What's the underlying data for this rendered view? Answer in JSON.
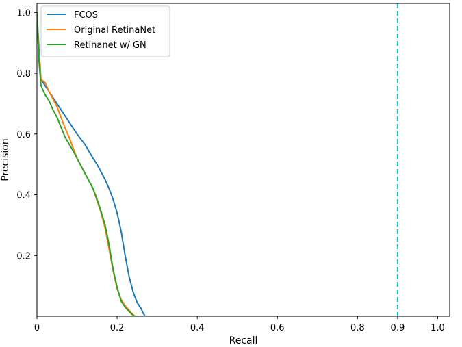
{
  "chart_data": {
    "type": "line",
    "xlabel": "Recall",
    "ylabel": "Precision",
    "xlim": [
      0,
      1.03
    ],
    "ylim": [
      0,
      1.03
    ],
    "x_ticks": [
      {
        "value": 0,
        "label": "0"
      },
      {
        "value": 0.2,
        "label": "0.2"
      },
      {
        "value": 0.4,
        "label": "0.4"
      },
      {
        "value": 0.6,
        "label": "0.6"
      },
      {
        "value": 0.8,
        "label": "0.8"
      },
      {
        "value": 0.9,
        "label": "0.9"
      },
      {
        "value": 1.0,
        "label": "1.0"
      }
    ],
    "y_ticks": [
      {
        "value": 0.2,
        "label": "0.2"
      },
      {
        "value": 0.4,
        "label": "0.4"
      },
      {
        "value": 0.6,
        "label": "0.6"
      },
      {
        "value": 0.8,
        "label": "0.8"
      },
      {
        "value": 1.0,
        "label": "1.0"
      }
    ],
    "grid": false,
    "legend_position": "top-left",
    "reference_line": {
      "orientation": "vertical",
      "x": 0.9,
      "style": "dashed",
      "color": "#17becf"
    },
    "series": [
      {
        "name": "FCOS",
        "color": "#1f77b4",
        "x": [
          0,
          0.005,
          0.01,
          0.02,
          0.03,
          0.05,
          0.07,
          0.08,
          0.1,
          0.12,
          0.14,
          0.15,
          0.17,
          0.18,
          0.19,
          0.2,
          0.21,
          0.22,
          0.23,
          0.24,
          0.25,
          0.26,
          0.265,
          0.27,
          1.0
        ],
        "y": [
          1.0,
          0.88,
          0.78,
          0.76,
          0.74,
          0.7,
          0.66,
          0.64,
          0.6,
          0.565,
          0.52,
          0.5,
          0.45,
          0.42,
          0.385,
          0.34,
          0.28,
          0.2,
          0.13,
          0.08,
          0.045,
          0.025,
          0.01,
          0.0,
          0.0
        ]
      },
      {
        "name": "Original RetinaNet",
        "color": "#ff7f0e",
        "x": [
          0,
          0.005,
          0.01,
          0.02,
          0.03,
          0.05,
          0.07,
          0.08,
          0.1,
          0.12,
          0.14,
          0.15,
          0.16,
          0.17,
          0.18,
          0.19,
          0.2,
          0.21,
          0.22,
          0.23,
          0.24,
          0.245,
          1.0
        ],
        "y": [
          1.0,
          0.86,
          0.78,
          0.77,
          0.74,
          0.69,
          0.62,
          0.59,
          0.52,
          0.47,
          0.42,
          0.38,
          0.34,
          0.29,
          0.22,
          0.15,
          0.09,
          0.055,
          0.035,
          0.02,
          0.005,
          0.0,
          0.0
        ]
      },
      {
        "name": "Retinanet w/ GN",
        "color": "#2ca02c",
        "x": [
          0,
          0.005,
          0.01,
          0.02,
          0.03,
          0.04,
          0.05,
          0.07,
          0.09,
          0.1,
          0.12,
          0.14,
          0.15,
          0.16,
          0.17,
          0.18,
          0.19,
          0.2,
          0.21,
          0.22,
          0.23,
          0.24,
          0.245,
          1.0
        ],
        "y": [
          1.0,
          0.84,
          0.76,
          0.73,
          0.71,
          0.68,
          0.655,
          0.59,
          0.545,
          0.52,
          0.47,
          0.42,
          0.385,
          0.345,
          0.3,
          0.235,
          0.155,
          0.095,
          0.05,
          0.03,
          0.015,
          0.003,
          0.0,
          0.0
        ]
      }
    ]
  }
}
